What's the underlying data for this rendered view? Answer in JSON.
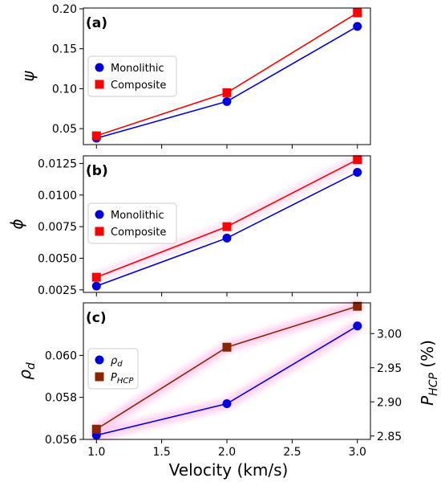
{
  "figure": {
    "xlabel": "Velocity (km/s)",
    "x_ticks": [
      "1.0",
      "1.5",
      "2.0",
      "2.5",
      "3.0"
    ]
  },
  "colors": {
    "blue": "#0000dd",
    "red": "#ff0000",
    "brown": "#8b2500",
    "highlight": "#ffccf0"
  },
  "chart_data": [
    {
      "type": "line",
      "panel_label": "(a)",
      "x": [
        1.0,
        2.0,
        3.0
      ],
      "xlim": [
        0.9,
        3.1
      ],
      "ylabel": "ψ",
      "ylim": [
        0.03,
        0.201
      ],
      "y_ticks": [
        0.05,
        0.1,
        0.15,
        0.2
      ],
      "y_tick_labels": [
        "0.05",
        "0.10",
        "0.15",
        "0.20"
      ],
      "legend_position": "center-left",
      "grid": false,
      "series": [
        {
          "name": "Monolithic",
          "values": [
            0.038,
            0.084,
            0.178
          ],
          "color": "#0000dd",
          "marker": "circle"
        },
        {
          "name": "Composite",
          "values": [
            0.041,
            0.095,
            0.195
          ],
          "color": "#ff0000",
          "marker": "square"
        }
      ]
    },
    {
      "type": "line",
      "panel_label": "(b)",
      "x": [
        1.0,
        2.0,
        3.0
      ],
      "xlim": [
        0.9,
        3.1
      ],
      "ylabel": "ϕ",
      "ylim": [
        0.0023,
        0.0131
      ],
      "y_ticks": [
        0.0025,
        0.005,
        0.0075,
        0.01,
        0.0125
      ],
      "y_tick_labels": [
        "0.0025",
        "0.0050",
        "0.0075",
        "0.0100",
        "0.0125"
      ],
      "legend_position": "center-left",
      "grid": false,
      "series": [
        {
          "name": "Monolithic",
          "values": [
            0.0028,
            0.0066,
            0.0118
          ],
          "color": "#0000dd",
          "marker": "circle"
        },
        {
          "name": "Composite",
          "values": [
            0.0035,
            0.0075,
            0.0128
          ],
          "color": "#ff0000",
          "marker": "square"
        }
      ]
    },
    {
      "type": "line",
      "panel_label": "(c)",
      "x": [
        1.0,
        2.0,
        3.0
      ],
      "xlim": [
        0.9,
        3.1
      ],
      "ylabel": "ρd",
      "ylabel_right": "PHCP (%)",
      "ylim": [
        0.056,
        0.0625
      ],
      "y_ticks": [
        0.056,
        0.058,
        0.06
      ],
      "y_tick_labels": [
        "0.056",
        "0.058",
        "0.060"
      ],
      "ylim_right": [
        2.845,
        3.045
      ],
      "y_ticks_right": [
        2.85,
        2.9,
        2.95,
        3.0
      ],
      "y_tick_labels_right": [
        "2.85",
        "2.90",
        "2.95",
        "3.00"
      ],
      "legend_position": "center-left",
      "grid": false,
      "series": [
        {
          "name": "ρd",
          "axis": "left",
          "values": [
            0.0562,
            0.0577,
            0.0614
          ],
          "color": "#0000dd",
          "marker": "circle"
        },
        {
          "name": "PHCP",
          "axis": "right",
          "values": [
            2.86,
            2.98,
            3.04
          ],
          "color": "#8b2500",
          "marker": "square"
        }
      ]
    }
  ]
}
